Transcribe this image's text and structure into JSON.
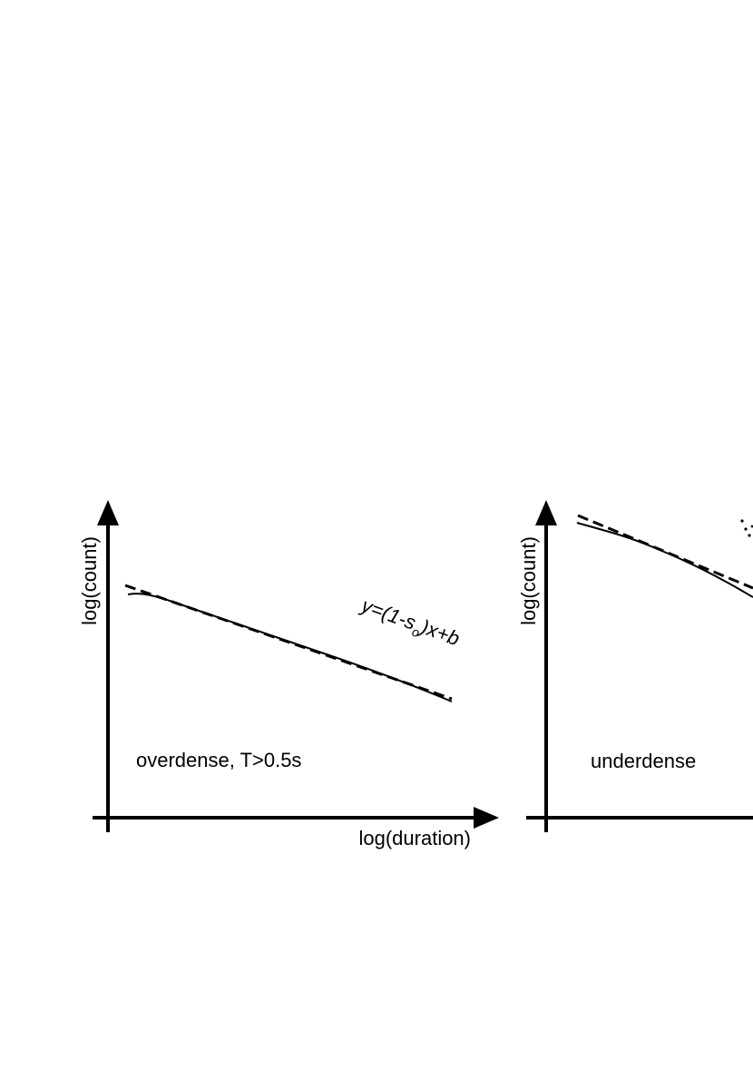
{
  "panels": [
    {
      "id": "left",
      "y_axis_label": "log(count)",
      "x_axis_label": "log(duration)",
      "annotation": "overdense, T>0.5s",
      "fit_label": {
        "prefix": "y=(1-s",
        "subscript": "o",
        "suffix": ")x+b"
      }
    },
    {
      "id": "right",
      "y_axis_label": "log(count)",
      "annotation": "underdense"
    }
  ],
  "colors": {
    "ink": "#000000",
    "background": "#ffffff"
  },
  "line_styles": {
    "data_curve": "solid",
    "power_law_fit": "dashed"
  }
}
